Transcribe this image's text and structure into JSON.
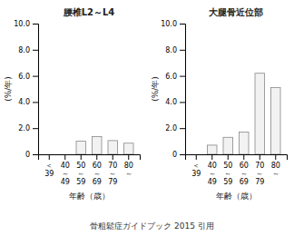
{
  "chart_data": [
    {
      "type": "bar",
      "title": "腰椎L2～L4",
      "ylabel": "(%/年)",
      "xlabel": "年齢（歳）",
      "categories": [
        "＜\n39",
        "40\n～\n49",
        "50\n～\n59",
        "60\n～\n69",
        "70\n～\n79",
        "80\n～"
      ],
      "values": [
        0.0,
        0.0,
        1.0,
        1.35,
        1.05,
        0.85
      ],
      "color": "#f2f2f2",
      "ylim": [
        0,
        10.0
      ],
      "yticks": [
        0,
        {
          "value": 2.0,
          "label": "2.0"
        },
        {
          "value": 4.0,
          "label": "4.0"
        },
        {
          "value": 6.0,
          "label": "6.0"
        },
        {
          "value": 8.0,
          "label": "8.0"
        },
        {
          "value": 10.0,
          "label": "10.0"
        }
      ],
      "grid": false,
      "annotations": [
        "骨粗鬆症ガイドブック 2015 引用"
      ]
    },
    {
      "type": "bar",
      "title": "大腿骨近位部",
      "ylabel": "(%/年)",
      "xlabel": "年齢（歳）",
      "categories": [
        "＜\n39",
        "40\n～\n49",
        "50\n～\n59",
        "60\n～\n69",
        "70\n～\n79",
        "80\n～"
      ],
      "values": [
        0.0,
        0.7,
        1.3,
        1.7,
        6.2,
        5.1
      ],
      "color": "#f2f2f2",
      "ylim": [
        0,
        10.0
      ],
      "yticks": [
        0,
        {
          "value": 2.0,
          "label": "2.0"
        },
        {
          "value": 4.0,
          "label": "4.0"
        },
        {
          "value": 6.0,
          "label": "6.0"
        },
        {
          "value": 8.0,
          "label": "8.0"
        },
        {
          "value": 10.0,
          "label": "10.0"
        }
      ],
      "grid": false
    }
  ]
}
